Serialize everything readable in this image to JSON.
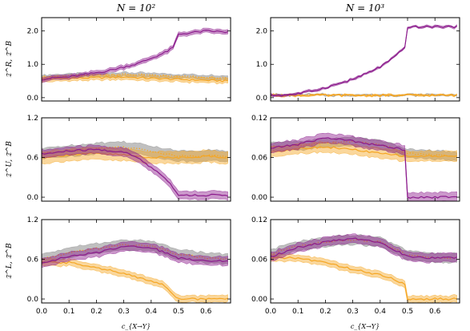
{
  "chart_data": {
    "type": "line",
    "column_titles": [
      "N = 10²",
      "N = 10³"
    ],
    "xlabel": "c_{X→Y}",
    "xlim": [
      0.0,
      0.69
    ],
    "xticks": [
      0.0,
      0.1,
      0.2,
      0.3,
      0.4,
      0.5,
      0.6
    ],
    "xtick_labels": [
      "0.0",
      "0.1",
      "0.2",
      "0.3",
      "0.4",
      "0.5",
      "0.6"
    ],
    "row_ylabels": [
      "𝔗^R, 𝔗̃^B",
      "𝔗^U, 𝔗̃^B",
      "𝔗^L, 𝔗̃^B"
    ],
    "colors": {
      "purple": "#8b1a8c",
      "orange": "#f5a623",
      "gray": "#8c8c8c"
    },
    "panels": [
      {
        "row": 0,
        "col": 0,
        "ylim": [
          -0.1,
          2.4
        ],
        "yticks": [
          0.0,
          1.0,
          2.0
        ],
        "ytick_labels": [
          "0.0",
          "1.0",
          "2.0"
        ],
        "series": [
          {
            "color": "gray",
            "style": "dotted",
            "x": [
              0.0,
              0.1,
              0.2,
              0.3,
              0.4,
              0.5,
              0.6,
              0.68
            ],
            "y": [
              0.62,
              0.65,
              0.68,
              0.7,
              0.67,
              0.65,
              0.62,
              0.6
            ],
            "band": 0.1
          },
          {
            "color": "orange",
            "style": "solid",
            "x": [
              0.0,
              0.1,
              0.2,
              0.3,
              0.4,
              0.5,
              0.6,
              0.68
            ],
            "y": [
              0.55,
              0.58,
              0.6,
              0.62,
              0.58,
              0.55,
              0.52,
              0.5
            ],
            "band": 0.13
          },
          {
            "color": "purple",
            "style": "solid",
            "x": [
              0.0,
              0.05,
              0.1,
              0.15,
              0.2,
              0.25,
              0.3,
              0.35,
              0.4,
              0.45,
              0.48,
              0.5,
              0.55,
              0.6,
              0.65,
              0.68
            ],
            "y": [
              0.55,
              0.6,
              0.62,
              0.68,
              0.75,
              0.82,
              0.92,
              1.02,
              1.18,
              1.35,
              1.5,
              1.9,
              1.95,
              2.0,
              1.98,
              1.96
            ],
            "band": 0.1
          }
        ]
      },
      {
        "row": 0,
        "col": 1,
        "ylim": [
          -0.1,
          2.4
        ],
        "yticks": [
          0.0,
          1.0,
          2.0
        ],
        "ytick_labels": [
          "0.0",
          "1.0",
          "2.0"
        ],
        "series": [
          {
            "color": "gray",
            "style": "dotted",
            "x": [
              0.0,
              0.1,
              0.2,
              0.3,
              0.4,
              0.5,
              0.6,
              0.68
            ],
            "y": [
              0.08,
              0.08,
              0.08,
              0.08,
              0.08,
              0.08,
              0.08,
              0.08
            ],
            "band": 0.02
          },
          {
            "color": "orange",
            "style": "solid",
            "x": [
              0.0,
              0.1,
              0.2,
              0.3,
              0.4,
              0.5,
              0.6,
              0.68
            ],
            "y": [
              0.07,
              0.07,
              0.07,
              0.07,
              0.07,
              0.07,
              0.07,
              0.07
            ],
            "band": 0.02
          },
          {
            "color": "purple",
            "style": "solid",
            "x": [
              0.0,
              0.05,
              0.1,
              0.15,
              0.2,
              0.25,
              0.3,
              0.35,
              0.4,
              0.45,
              0.49,
              0.5,
              0.55,
              0.6,
              0.65,
              0.68
            ],
            "y": [
              0.07,
              0.08,
              0.12,
              0.2,
              0.3,
              0.42,
              0.55,
              0.72,
              0.92,
              1.2,
              1.5,
              2.12,
              2.12,
              2.13,
              2.13,
              2.12
            ],
            "band": 0.04
          }
        ]
      },
      {
        "row": 1,
        "col": 0,
        "ylim": [
          -0.06,
          1.2
        ],
        "yticks": [
          0.0,
          0.6,
          1.2
        ],
        "ytick_labels": [
          "0.0",
          "0.6",
          "1.2"
        ],
        "series": [
          {
            "color": "gray",
            "style": "dotted",
            "x": [
              0.0,
              0.1,
              0.2,
              0.3,
              0.4,
              0.5,
              0.6,
              0.68
            ],
            "y": [
              0.66,
              0.7,
              0.74,
              0.76,
              0.7,
              0.62,
              0.63,
              0.62
            ],
            "band": 0.15
          },
          {
            "color": "orange",
            "style": "solid",
            "x": [
              0.0,
              0.1,
              0.2,
              0.3,
              0.4,
              0.5,
              0.6,
              0.68
            ],
            "y": [
              0.6,
              0.64,
              0.66,
              0.64,
              0.6,
              0.6,
              0.62,
              0.6
            ],
            "band": 0.17
          },
          {
            "color": "purple",
            "style": "solid",
            "x": [
              0.0,
              0.1,
              0.2,
              0.3,
              0.35,
              0.4,
              0.45,
              0.48,
              0.5,
              0.6,
              0.68
            ],
            "y": [
              0.65,
              0.7,
              0.72,
              0.68,
              0.6,
              0.45,
              0.3,
              0.15,
              0.03,
              0.03,
              0.03
            ],
            "band": 0.11
          }
        ]
      },
      {
        "row": 1,
        "col": 1,
        "ylim": [
          -0.006,
          0.12
        ],
        "yticks": [
          0.0,
          0.06,
          0.12
        ],
        "ytick_labels": [
          "0.00",
          "0.06",
          "0.12"
        ],
        "series": [
          {
            "color": "gray",
            "style": "dotted",
            "x": [
              0.0,
              0.1,
              0.2,
              0.3,
              0.4,
              0.5,
              0.6,
              0.68
            ],
            "y": [
              0.076,
              0.078,
              0.082,
              0.084,
              0.08,
              0.066,
              0.064,
              0.062
            ],
            "band": 0.012
          },
          {
            "color": "orange",
            "style": "solid",
            "x": [
              0.0,
              0.1,
              0.2,
              0.3,
              0.4,
              0.5,
              0.6,
              0.68
            ],
            "y": [
              0.068,
              0.074,
              0.076,
              0.072,
              0.066,
              0.062,
              0.062,
              0.062
            ],
            "band": 0.014
          },
          {
            "color": "purple",
            "style": "solid",
            "x": [
              0.0,
              0.1,
              0.2,
              0.3,
              0.4,
              0.49,
              0.5,
              0.6,
              0.68
            ],
            "y": [
              0.074,
              0.08,
              0.09,
              0.085,
              0.078,
              0.072,
              0.0,
              0.0,
              0.0
            ],
            "band": 0.013
          }
        ]
      },
      {
        "row": 2,
        "col": 0,
        "ylim": [
          -0.06,
          1.2
        ],
        "yticks": [
          0.0,
          0.6,
          1.2
        ],
        "ytick_labels": [
          "0.0",
          "0.6",
          "1.2"
        ],
        "series": [
          {
            "color": "gray",
            "style": "dotted",
            "x": [
              0.0,
              0.1,
              0.2,
              0.3,
              0.4,
              0.5,
              0.6,
              0.68
            ],
            "y": [
              0.6,
              0.7,
              0.76,
              0.82,
              0.8,
              0.68,
              0.62,
              0.6
            ],
            "band": 0.14
          },
          {
            "color": "orange",
            "style": "solid",
            "x": [
              0.0,
              0.1,
              0.2,
              0.3,
              0.4,
              0.45,
              0.5,
              0.6,
              0.68
            ],
            "y": [
              0.55,
              0.55,
              0.48,
              0.38,
              0.28,
              0.2,
              0.0,
              0.0,
              0.0
            ],
            "band": 0.09
          },
          {
            "color": "purple",
            "style": "solid",
            "x": [
              0.0,
              0.1,
              0.2,
              0.3,
              0.4,
              0.5,
              0.6,
              0.68
            ],
            "y": [
              0.55,
              0.64,
              0.7,
              0.8,
              0.78,
              0.62,
              0.58,
              0.58
            ],
            "band": 0.12
          }
        ]
      },
      {
        "row": 2,
        "col": 1,
        "ylim": [
          -0.006,
          0.12
        ],
        "yticks": [
          0.0,
          0.06,
          0.12
        ],
        "ytick_labels": [
          "0.00",
          "0.06",
          "0.12"
        ],
        "series": [
          {
            "color": "gray",
            "style": "dotted",
            "x": [
              0.0,
              0.1,
              0.2,
              0.3,
              0.4,
              0.5,
              0.6,
              0.68
            ],
            "y": [
              0.068,
              0.08,
              0.086,
              0.09,
              0.086,
              0.066,
              0.062,
              0.062
            ],
            "band": 0.013
          },
          {
            "color": "orange",
            "style": "solid",
            "x": [
              0.0,
              0.1,
              0.2,
              0.3,
              0.4,
              0.45,
              0.49,
              0.5,
              0.6,
              0.68
            ],
            "y": [
              0.062,
              0.062,
              0.055,
              0.045,
              0.036,
              0.03,
              0.022,
              0.0,
              0.0,
              0.0
            ],
            "band": 0.009
          },
          {
            "color": "purple",
            "style": "solid",
            "x": [
              0.0,
              0.1,
              0.2,
              0.3,
              0.4,
              0.5,
              0.6,
              0.68
            ],
            "y": [
              0.064,
              0.078,
              0.086,
              0.092,
              0.086,
              0.064,
              0.062,
              0.062
            ],
            "band": 0.012
          }
        ]
      }
    ]
  }
}
